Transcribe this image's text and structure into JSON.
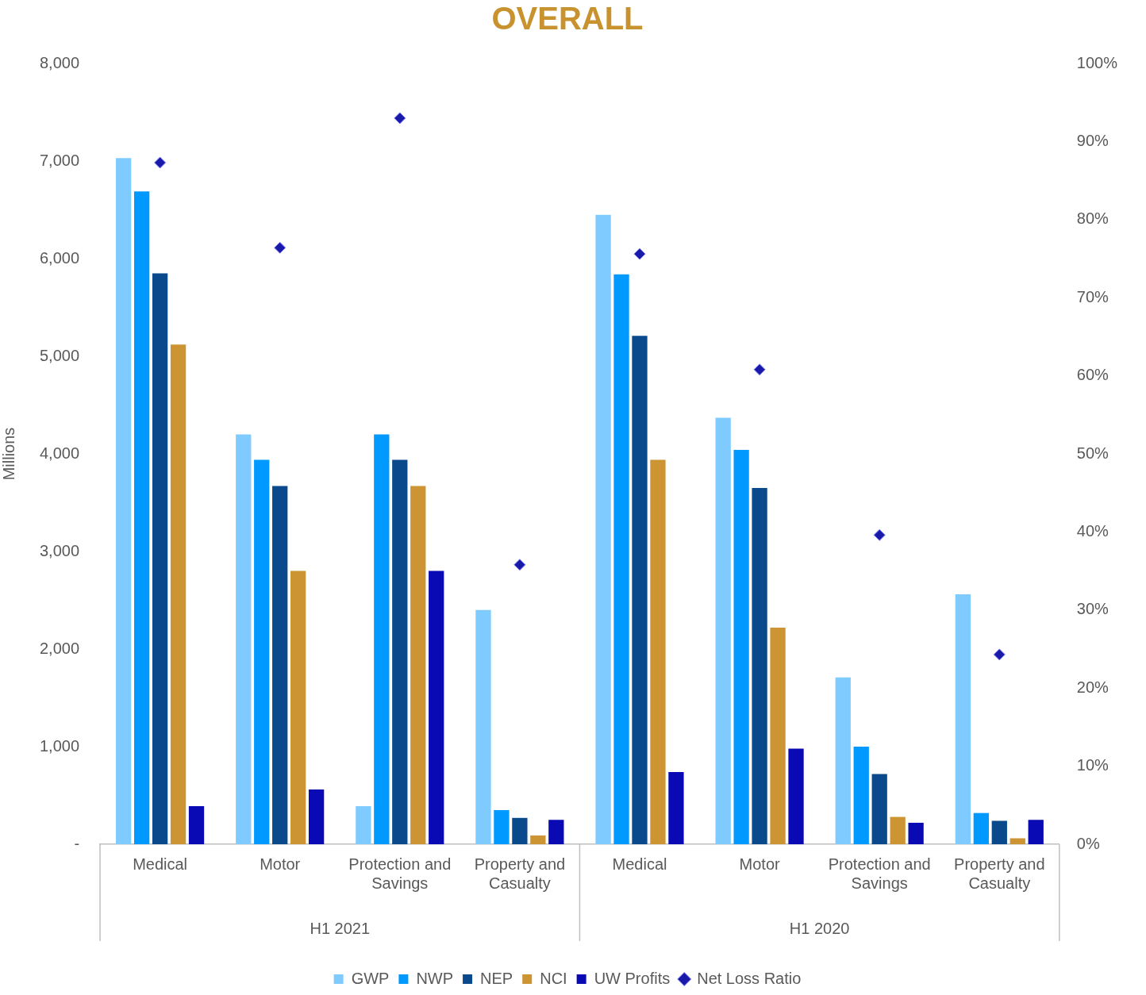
{
  "chart_data": {
    "type": "bar",
    "title": "OVERALL",
    "ylabel": "Millions",
    "categories": [
      "Medical",
      "Motor",
      "Protection and Savings",
      "Property and Casualty",
      "Medical",
      "Motor",
      "Protection and Savings",
      "Property and Casualty"
    ],
    "series": [
      {
        "name": "GWP",
        "color": "#7fcbff",
        "values": [
          7030,
          4200,
          390,
          2400,
          6450,
          4370,
          1710,
          2560
        ]
      },
      {
        "name": "NWP",
        "color": "#0099ff",
        "values": [
          6690,
          3940,
          4200,
          350,
          5840,
          4040,
          1000,
          320
        ]
      },
      {
        "name": "NEP",
        "color": "#0a4a8c",
        "values": [
          5850,
          3670,
          3940,
          270,
          5210,
          3650,
          720,
          240
        ]
      },
      {
        "name": "NCI",
        "color": "#cc9433",
        "values": [
          5120,
          2800,
          3670,
          90,
          3940,
          2220,
          280,
          60
        ]
      },
      {
        "name": "UW Profits",
        "color": "#0a0ab4",
        "values": [
          390,
          560,
          2800,
          250,
          740,
          980,
          220,
          250
        ]
      },
      {
        "name": "Net Loss Ratio",
        "type": "scatter",
        "axis": "y2",
        "marker": "diamond",
        "color": "#1a1aa8",
        "values": [
          87.3,
          76.4,
          93.0,
          35.8,
          75.6,
          60.8,
          39.6,
          24.3
        ]
      }
    ],
    "ylim": [
      0,
      8000
    ],
    "yticks": [
      {
        "value": 0,
        "label": "-"
      },
      {
        "value": 1000,
        "label": "1,000"
      },
      {
        "value": 2000,
        "label": "2,000"
      },
      {
        "value": 3000,
        "label": "3,000"
      },
      {
        "value": 4000,
        "label": "4,000"
      },
      {
        "value": 5000,
        "label": "5,000"
      },
      {
        "value": 6000,
        "label": "6,000"
      },
      {
        "value": 7000,
        "label": "7,000"
      },
      {
        "value": 8000,
        "label": "8,000"
      }
    ],
    "y2lim": [
      0,
      100
    ],
    "y2ticks": [
      {
        "value": 0,
        "label": "0%"
      },
      {
        "value": 10,
        "label": "10%"
      },
      {
        "value": 20,
        "label": "20%"
      },
      {
        "value": 30,
        "label": "30%"
      },
      {
        "value": 40,
        "label": "40%"
      },
      {
        "value": 50,
        "label": "50%"
      },
      {
        "value": 60,
        "label": "60%"
      },
      {
        "value": 70,
        "label": "70%"
      },
      {
        "value": 80,
        "label": "80%"
      },
      {
        "value": 90,
        "label": "90%"
      },
      {
        "value": 100,
        "label": "100%"
      }
    ],
    "annotations": [
      "H1 2021",
      "H1 2020"
    ],
    "grid": false,
    "legend": "bottom"
  }
}
